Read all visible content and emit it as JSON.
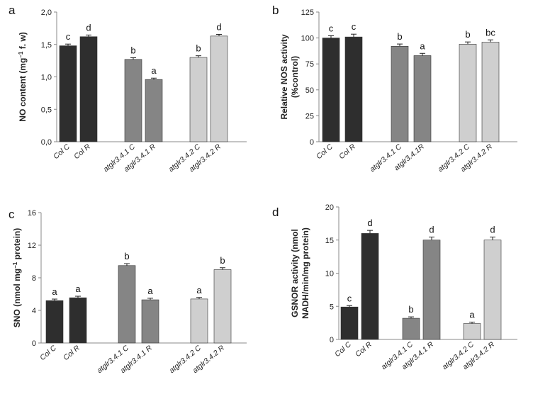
{
  "colors": {
    "dark": "#2e2e2e",
    "mid": "#858585",
    "light": "#cfcfcf",
    "axis": "#888888"
  },
  "chart_data": [
    {
      "type": "bar",
      "panel_label": "a",
      "ylabel_parts": [
        "NO content (mg",
        "−1",
        " f. w)"
      ],
      "ylabel_lines": [],
      "ylim": [
        0,
        2.0
      ],
      "yticks": [
        "0,0",
        "0,5",
        "1,0",
        "1,5",
        "2,0"
      ],
      "categories": [
        "Col C",
        "Col R",
        "atglr3.4.1 C",
        "atglr3.4.1 R",
        "atglr3.4.2 C",
        "atglr3.4.2 R"
      ],
      "values": [
        1.48,
        1.62,
        1.27,
        0.96,
        1.3,
        1.63
      ],
      "errors": [
        0.015,
        0.015,
        0.015,
        0.01,
        0.015,
        0.015
      ],
      "letters": [
        "c",
        "d",
        "b",
        "a",
        "b",
        "d"
      ]
    },
    {
      "type": "bar",
      "panel_label": "b",
      "ylabel_parts": [],
      "ylabel_lines": [
        "Relative NOS activity",
        "(%control)"
      ],
      "ylim": [
        0,
        125
      ],
      "yticks": [
        "0",
        "25",
        "50",
        "75",
        "100",
        "125"
      ],
      "categories": [
        "Col C",
        "Col R",
        "atglr3.4.1 C",
        "atglr3.4.1R",
        "atglr3.4.2 C",
        "atglr3.4.2 R"
      ],
      "values": [
        100,
        101,
        92,
        83,
        94,
        96
      ],
      "errors": [
        1.5,
        2,
        1.5,
        1.5,
        1.5,
        1.5
      ],
      "letters": [
        "c",
        "c",
        "b",
        "a",
        "b",
        "bc"
      ]
    },
    {
      "type": "bar",
      "panel_label": "c",
      "ylabel_parts": [
        "SNO (nmol mg",
        "−1",
        " protein)"
      ],
      "ylabel_lines": [],
      "ylim": [
        0,
        16
      ],
      "yticks": [
        "0",
        "4",
        "8",
        "12",
        "16"
      ],
      "categories": [
        "Col C",
        "Col R",
        "atglr3.4.1 C",
        "atglr3.4.1 R",
        "atglr3.4.2 C",
        "atglr3.4.2 R"
      ],
      "values": [
        5.2,
        5.55,
        9.5,
        5.3,
        5.4,
        9.0
      ],
      "errors": [
        0.1,
        0.1,
        0.15,
        0.1,
        0.1,
        0.15
      ],
      "letters": [
        "a",
        "a",
        "b",
        "a",
        "a",
        "b"
      ]
    },
    {
      "type": "bar",
      "panel_label": "d",
      "ylabel_parts": [],
      "ylabel_lines": [
        "GSNOR activity (nmol",
        "NADH/min/mg protein)"
      ],
      "ylim": [
        0,
        20
      ],
      "yticks": [
        "0",
        "5",
        "10",
        "15",
        "20"
      ],
      "categories": [
        "Col C",
        "Col R",
        "atglr3.4.1 C",
        "atglr3.4.1 R",
        "atglr3.4.2 C",
        "atglr3.4.2 R"
      ],
      "values": [
        4.9,
        16.0,
        3.2,
        15.0,
        2.4,
        15.0
      ],
      "errors": [
        0.1,
        0.35,
        0.1,
        0.35,
        0.1,
        0.35
      ],
      "letters": [
        "c",
        "d",
        "b",
        "d",
        "a",
        "d"
      ]
    }
  ]
}
